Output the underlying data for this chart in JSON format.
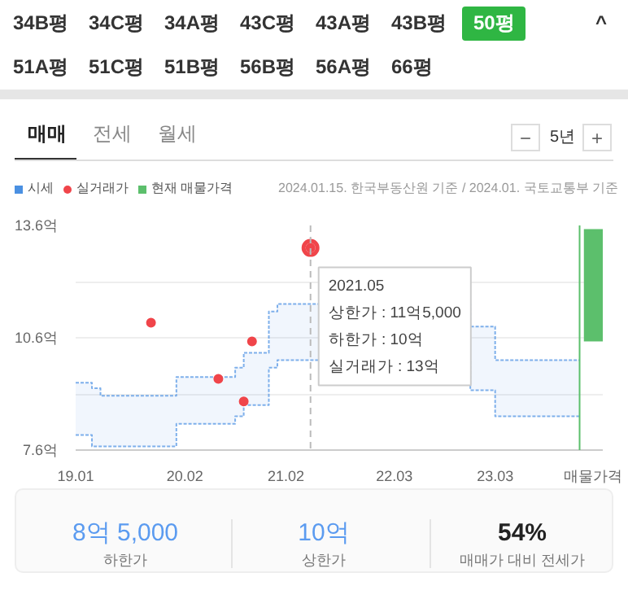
{
  "chart_data": {
    "type": "step",
    "x": [
      "2019-01",
      "2019-03",
      "2019-04",
      "2019-12",
      "2020-01",
      "2020-07",
      "2020-08",
      "2020-09",
      "2020-12",
      "2021-01",
      "2022-12",
      "2023-03",
      "2024-01"
    ],
    "series": [
      {
        "name": "시세",
        "color": "#4a90e2",
        "line_style": "dashed",
        "values": [
          9.4,
          9.25,
          9.05,
          9.05,
          9.55,
          9.55,
          9.8,
          10.2,
          11.3,
          11.5,
          10.9,
          10.0,
          10.0
        ],
        "lower": [
          8.0,
          7.7,
          7.7,
          7.7,
          8.3,
          8.3,
          8.5,
          8.8,
          9.8,
          10.0,
          9.2,
          8.5,
          8.5
        ],
        "upper": [
          9.4,
          9.25,
          9.05,
          9.05,
          9.55,
          9.55,
          9.8,
          10.2,
          11.3,
          11.5,
          10.9,
          10.0,
          10.0
        ]
      },
      {
        "color": "#4a90e2",
        "line_style": "dashed",
        "values": [
          8.0,
          7.7,
          7.7,
          7.7,
          8.3,
          8.3,
          8.5,
          8.8,
          9.8,
          10.0,
          9.2,
          8.5,
          8.5
        ]
      },
      {
        "name": "실거래가",
        "type": "scatter",
        "color": "#f0454a",
        "marker": "circle",
        "x": [
          "2019-10",
          "2020-06",
          "2020-09",
          "2020-10",
          "2021-05"
        ],
        "values": [
          11.0,
          9.5,
          8.9,
          10.5,
          13.0
        ]
      },
      {
        "name": "현재 매물가격",
        "type": "bar",
        "color": "#5cbf6c",
        "x": [
          "2024-02-20"
        ],
        "base": [
          10.5
        ],
        "values": [
          3.0
        ]
      }
    ],
    "xlim": [
      "2019-01-01",
      "2024-03-25"
    ],
    "xticks": [
      {
        "value": "2019-01",
        "label": "19.01"
      },
      {
        "value": "2020-02",
        "label": "20.02"
      },
      {
        "value": "2021-02",
        "label": "21.02"
      },
      {
        "value": "2022-03",
        "label": "22.03"
      },
      {
        "value": "2023-03",
        "label": "23.03"
      },
      {
        "value": "2024-02-20",
        "label": "매물가격"
      }
    ],
    "ylim": [
      7.6,
      13.6
    ],
    "yticks": [
      {
        "value": 7.6,
        "label": "7.6억"
      },
      {
        "value": 9.1,
        "label": null
      },
      {
        "value": 10.6,
        "label": "10.6억"
      },
      {
        "value": 12.1,
        "label": null
      },
      {
        "value": 13.6,
        "label": "13.6억"
      }
    ],
    "grid": "y",
    "legend": "top left",
    "ref_lines": [
      {
        "axis": "x",
        "value": "2021-05",
        "label": null,
        "color": "#bbbbbb",
        "line_style": "dashed"
      },
      {
        "axis": "x",
        "value": "2024-01",
        "label": null,
        "color": "#5cbf6c",
        "line_style": "solid"
      }
    ],
    "annotations": [
      "34B평",
      "34C평",
      "34A평",
      "43C평",
      "43A평",
      "43B평",
      "50평",
      "51A평",
      "51C평",
      "51B평",
      "56B평",
      "56A평",
      "66평",
      "매매",
      "전세",
      "월세",
      "−",
      "5년",
      "+",
      "2024.01.15. 한국부동산원 기준 / 2024.01. 국토교통부 기준",
      {
        "text": "2021.05\n상한가 : 11억5,000\n하한가 : 10억\n실거래가 : 13억",
        "x": "2021-05",
        "y": 13.0
      },
      "8억 5,000",
      "하한가",
      "10억",
      "상한가",
      "54%",
      "매매가 대비 전세가",
      "^"
    ]
  }
}
